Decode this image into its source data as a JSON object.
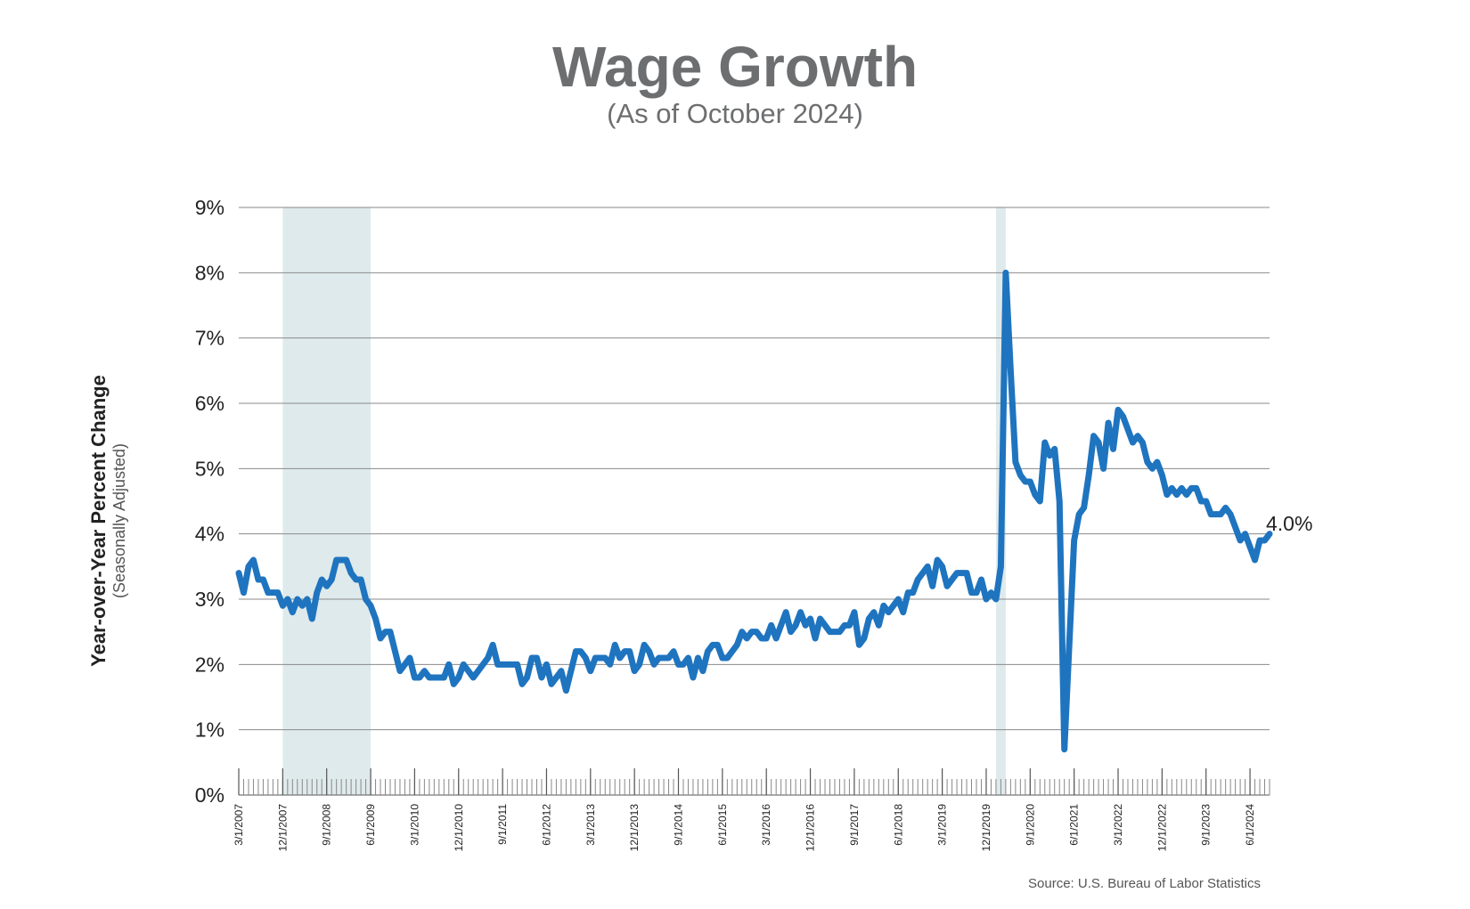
{
  "title": "Wage Growth",
  "subtitle": "(As of October 2024)",
  "source": "Source: U.S. Bureau of Labor Statistics",
  "chart_data": {
    "type": "line",
    "title": "Wage Growth",
    "subtitle": "(As of October 2024)",
    "ylabel": "Year-over-Year Percent Change",
    "ylabel_sub": "(Seasonally Adjusted)",
    "ylim": [
      0,
      9
    ],
    "yticks": [
      "0%",
      "1%",
      "2%",
      "3%",
      "4%",
      "5%",
      "6%",
      "7%",
      "8%",
      "9%"
    ],
    "xticks": [
      "3/1/2007",
      "12/1/2007",
      "9/1/2008",
      "6/1/2009",
      "3/1/2010",
      "12/1/2010",
      "9/1/2011",
      "6/1/2012",
      "3/1/2013",
      "12/1/2013",
      "9/1/2014",
      "6/1/2015",
      "3/1/2016",
      "12/1/2016",
      "9/1/2017",
      "6/1/2018",
      "3/1/2019",
      "12/1/2019",
      "9/1/2020",
      "6/1/2021",
      "3/1/2022",
      "12/1/2022",
      "9/1/2023",
      "6/1/2024"
    ],
    "grid": true,
    "line_color": "#1f74bf",
    "shade_color": "#dfeaec",
    "recessions": [
      [
        "2007-12",
        "2009-06"
      ],
      [
        "2020-02",
        "2020-04"
      ]
    ],
    "end_label": "4.0%",
    "series": [
      {
        "x_start": "2007-03",
        "values": [
          3.4,
          3.1,
          3.5,
          3.6,
          3.3,
          3.3,
          3.1,
          3.1,
          3.1,
          2.9,
          3.0,
          2.8,
          3.0,
          2.9,
          3.0,
          2.7,
          3.1,
          3.3,
          3.2,
          3.3,
          3.6,
          3.6,
          3.6,
          3.4,
          3.3,
          3.3,
          3.0,
          2.9,
          2.7,
          2.4,
          2.5,
          2.5,
          2.2,
          1.9,
          2.0,
          2.1,
          1.8,
          1.8,
          1.9,
          1.8,
          1.8,
          1.8,
          1.8,
          2.0,
          1.7,
          1.8,
          2.0,
          1.9,
          1.8,
          1.9,
          2.0,
          2.1,
          2.3,
          2.0,
          2.0,
          2.0,
          2.0,
          2.0,
          1.7,
          1.8,
          2.1,
          2.1,
          1.8,
          2.0,
          1.7,
          1.8,
          1.9,
          1.6,
          1.9,
          2.2,
          2.2,
          2.1,
          1.9,
          2.1,
          2.1,
          2.1,
          2.0,
          2.3,
          2.1,
          2.2,
          2.2,
          1.9,
          2.0,
          2.3,
          2.2,
          2.0,
          2.1,
          2.1,
          2.1,
          2.2,
          2.0,
          2.0,
          2.1,
          1.8,
          2.1,
          1.9,
          2.2,
          2.3,
          2.3,
          2.1,
          2.1,
          2.2,
          2.3,
          2.5,
          2.4,
          2.5,
          2.5,
          2.4,
          2.4,
          2.6,
          2.4,
          2.6,
          2.8,
          2.5,
          2.6,
          2.8,
          2.6,
          2.7,
          2.4,
          2.7,
          2.6,
          2.5,
          2.5,
          2.5,
          2.6,
          2.6,
          2.8,
          2.3,
          2.4,
          2.7,
          2.8,
          2.6,
          2.9,
          2.8,
          2.9,
          3.0,
          2.8,
          3.1,
          3.1,
          3.3,
          3.4,
          3.5,
          3.2,
          3.6,
          3.5,
          3.2,
          3.3,
          3.4,
          3.4,
          3.4,
          3.1,
          3.1,
          3.3,
          3.0,
          3.1,
          3.0,
          3.5,
          8.0,
          6.5,
          5.1,
          4.9,
          4.8,
          4.8,
          4.6,
          4.5,
          5.4,
          5.2,
          5.3,
          4.5,
          0.7,
          2.3,
          3.9,
          4.3,
          4.4,
          4.9,
          5.5,
          5.4,
          5.0,
          5.7,
          5.3,
          5.9,
          5.8,
          5.6,
          5.4,
          5.5,
          5.4,
          5.1,
          5.0,
          5.1,
          4.9,
          4.6,
          4.7,
          4.6,
          4.7,
          4.6,
          4.7,
          4.7,
          4.5,
          4.5,
          4.3,
          4.3,
          4.3,
          4.4,
          4.3,
          4.1,
          3.9,
          4.0,
          3.8,
          3.6,
          3.9,
          3.9,
          4.0
        ]
      }
    ]
  }
}
